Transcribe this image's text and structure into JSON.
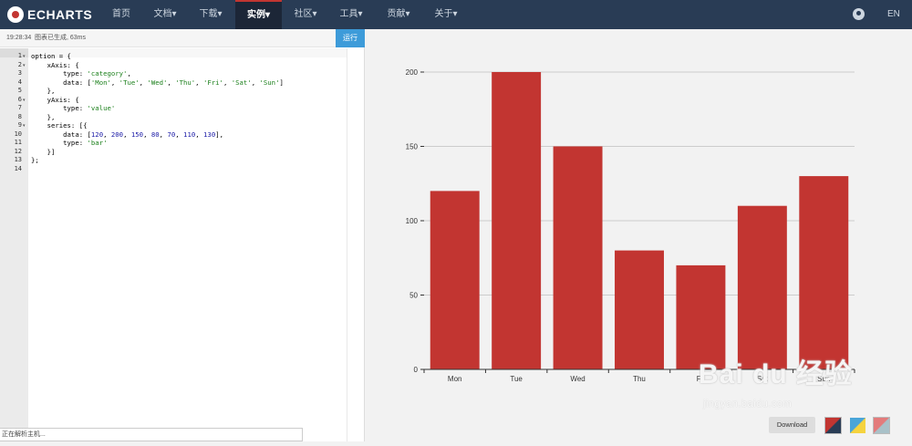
{
  "nav": {
    "brand": "ECHARTS",
    "items": [
      {
        "label": "首页"
      },
      {
        "label": "文档▾"
      },
      {
        "label": "下载▾"
      },
      {
        "label": "实例▾"
      },
      {
        "label": "社区▾"
      },
      {
        "label": "工具▾"
      },
      {
        "label": "贡献▾"
      },
      {
        "label": "关于▾"
      }
    ],
    "lang": "EN",
    "github_icon": "github-icon"
  },
  "editor": {
    "time": "19:28:34",
    "status_text": "图表已生成, 63ms",
    "run_label": "运行",
    "line_numbers": [
      "1",
      "2",
      "3",
      "4",
      "5",
      "6",
      "7",
      "8",
      "9",
      "10",
      "11",
      "12",
      "13",
      "14"
    ],
    "code_lines": [
      "option = {",
      "    xAxis: {",
      "        type: 'category',",
      "        data: ['Mon', 'Tue', 'Wed', 'Thu', 'Fri', 'Sat', 'Sun']",
      "    },",
      "    yAxis: {",
      "        type: 'value'",
      "    },",
      "    series: [{",
      "        data: [120, 200, 150, 80, 70, 110, 130],",
      "        type: 'bar'",
      "    }]",
      "};",
      ""
    ],
    "footer_hint": "正在解析主机..."
  },
  "preview": {
    "download_label": "Download",
    "themes": [
      "dark-red-theme",
      "blue-yellow-theme",
      "pink-grey-theme"
    ],
    "watermark": {
      "brand": "Bai du 经验",
      "url": "jingyan.baidu.com"
    }
  },
  "chart_data": {
    "type": "bar",
    "categories": [
      "Mon",
      "Tue",
      "Wed",
      "Thu",
      "Fri",
      "Sat",
      "Sun"
    ],
    "values": [
      120,
      200,
      150,
      80,
      70,
      110,
      130
    ],
    "ylim": [
      0,
      200
    ],
    "yticks": [
      0,
      50,
      100,
      150,
      200
    ],
    "grid": true,
    "colors": {
      "bar": "#c23531",
      "grid": "#cccccc",
      "axis": "#333333"
    }
  }
}
